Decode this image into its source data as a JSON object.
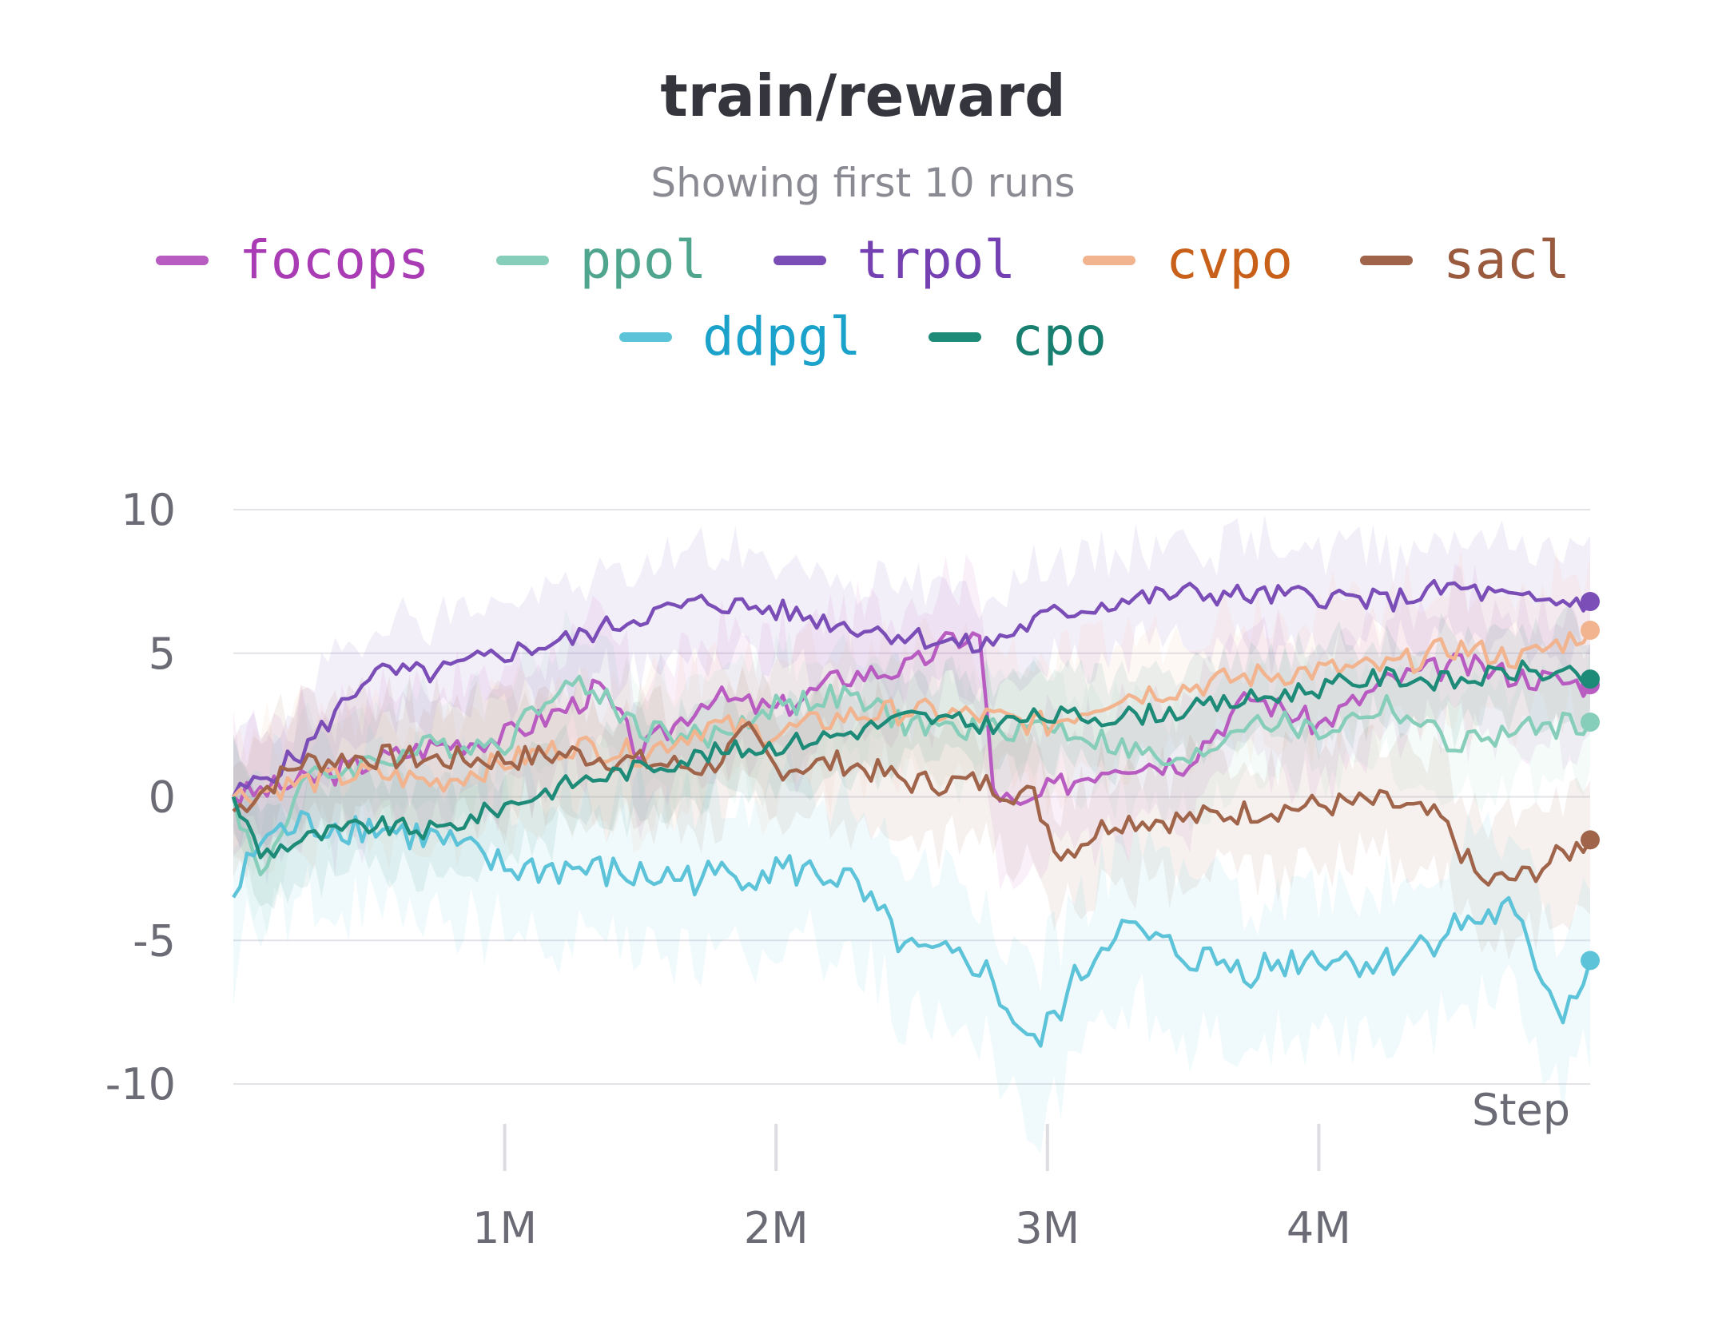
{
  "chart_data": {
    "type": "line",
    "title": "train/reward",
    "subtitle": "Showing first 10 runs",
    "xlabel": "Step",
    "ylabel": "",
    "xlim": [
      0,
      5000000
    ],
    "ylim": [
      -10,
      10
    ],
    "xticks": [
      1000000,
      2000000,
      3000000,
      4000000
    ],
    "xtick_labels": [
      "1M",
      "2M",
      "3M",
      "4M"
    ],
    "yticks": [
      10,
      5,
      0,
      -5,
      -10
    ],
    "ytick_labels": [
      "10",
      "5",
      "0",
      "-5",
      "-10"
    ],
    "grid": "horizontal",
    "legend_position": "top",
    "series": [
      {
        "name": "focops",
        "color": "#b85cc1",
        "text_color": "#a93cb5",
        "x": [
          0,
          250000,
          500000,
          750000,
          1000000,
          1250000,
          1350000,
          1500000,
          1750000,
          2000000,
          2250000,
          2500000,
          2650000,
          2750000,
          2800000,
          2900000,
          3000000,
          3250000,
          3500000,
          3750000,
          4000000,
          4250000,
          4500000,
          4750000,
          5000000
        ],
        "values": [
          0,
          0.5,
          1.2,
          1.8,
          2.1,
          3.2,
          3.8,
          1.5,
          3.5,
          3.0,
          4.2,
          4.5,
          5.5,
          5.6,
          0.3,
          -0.5,
          0.2,
          1.2,
          1.2,
          3.5,
          2.5,
          4.0,
          4.6,
          4.2,
          3.9
        ],
        "end_value": 3.9
      },
      {
        "name": "ppol",
        "color": "#86ceb9",
        "text_color": "#4fa58e",
        "x": [
          0,
          100000,
          250000,
          500000,
          750000,
          1000000,
          1200000,
          1350000,
          1500000,
          1750000,
          2000000,
          2250000,
          2500000,
          2750000,
          3000000,
          3250000,
          3500000,
          3750000,
          4000000,
          4250000,
          4500000,
          4750000,
          5000000
        ],
        "values": [
          0,
          -2.8,
          0.5,
          1.2,
          1.8,
          1.9,
          4.0,
          3.6,
          2.4,
          2.0,
          3.2,
          3.5,
          2.5,
          2.3,
          2.5,
          1.8,
          1.0,
          2.8,
          2.2,
          3.2,
          1.8,
          2.3,
          2.6
        ],
        "end_value": 2.6
      },
      {
        "name": "trpol",
        "color": "#7a4db7",
        "text_color": "#7440b2",
        "x": [
          0,
          250000,
          500000,
          750000,
          1000000,
          1250000,
          1500000,
          1750000,
          2000000,
          2250000,
          2500000,
          2750000,
          3000000,
          3250000,
          3500000,
          3750000,
          4000000,
          4250000,
          4500000,
          4750000,
          5000000
        ],
        "values": [
          0,
          1.5,
          4.3,
          4.3,
          5.0,
          5.5,
          6.3,
          6.8,
          6.5,
          6.0,
          5.6,
          5.2,
          6.3,
          6.8,
          7.1,
          7.0,
          7.0,
          6.8,
          7.3,
          6.8,
          6.8
        ],
        "end_value": 6.8
      },
      {
        "name": "cvpo",
        "color": "#f2b48e",
        "text_color": "#c8601a",
        "x": [
          0,
          250000,
          500000,
          750000,
          1000000,
          1250000,
          1500000,
          1750000,
          2000000,
          2250000,
          2500000,
          2750000,
          3000000,
          3250000,
          3500000,
          3750000,
          4000000,
          4250000,
          4500000,
          4750000,
          5000000
        ],
        "values": [
          0,
          0.5,
          0.8,
          0.5,
          1.2,
          1.8,
          1.5,
          2.5,
          2.2,
          2.8,
          3.0,
          2.8,
          2.5,
          3.5,
          3.8,
          4.2,
          4.4,
          4.5,
          5.2,
          4.8,
          5.8
        ],
        "end_value": 5.8
      },
      {
        "name": "sacl",
        "color": "#a0644a",
        "text_color": "#9a5a3e",
        "x": [
          0,
          250000,
          500000,
          750000,
          1000000,
          1250000,
          1500000,
          1750000,
          1900000,
          2000000,
          2250000,
          2500000,
          2750000,
          2950000,
          3050000,
          3250000,
          3500000,
          3750000,
          4000000,
          4250000,
          4450000,
          4600000,
          4750000,
          5000000
        ],
        "values": [
          -0.5,
          1.2,
          1.4,
          1.3,
          1.3,
          1.5,
          1.2,
          1.0,
          2.2,
          1.0,
          1.2,
          0.5,
          0.5,
          0.0,
          -2.0,
          -0.8,
          -0.8,
          -0.5,
          -0.3,
          -0.2,
          -0.8,
          -3.0,
          -2.8,
          -1.5
        ],
        "end_value": -1.5
      },
      {
        "name": "ddpgl",
        "color": "#5cc3d9",
        "text_color": "#1aa2ca",
        "x": [
          0,
          100000,
          250000,
          500000,
          750000,
          1000000,
          1250000,
          1500000,
          1750000,
          2000000,
          2250000,
          2500000,
          2750000,
          2950000,
          3100000,
          3250000,
          3500000,
          3750000,
          4000000,
          4250000,
          4500000,
          4700000,
          4900000,
          5000000
        ],
        "values": [
          -3.5,
          -1.5,
          -1.0,
          -1.0,
          -1.5,
          -2.5,
          -2.5,
          -2.8,
          -2.8,
          -2.5,
          -2.8,
          -5.5,
          -5.8,
          -8.8,
          -6.5,
          -4.5,
          -5.5,
          -6.0,
          -5.5,
          -5.8,
          -4.5,
          -4.0,
          -7.5,
          -5.7
        ],
        "end_value": -5.7
      },
      {
        "name": "cpo",
        "color": "#1e8a78",
        "text_color": "#188070",
        "x": [
          0,
          100000,
          250000,
          500000,
          750000,
          1000000,
          1250000,
          1500000,
          1750000,
          2000000,
          2250000,
          2500000,
          2750000,
          3000000,
          3250000,
          3500000,
          3750000,
          4000000,
          4250000,
          4500000,
          4750000,
          5000000
        ],
        "values": [
          0,
          -2.0,
          -1.5,
          -1.0,
          -1.2,
          -0.3,
          0.5,
          1.0,
          1.5,
          1.8,
          2.2,
          2.8,
          2.5,
          2.8,
          2.8,
          3.0,
          3.4,
          3.8,
          4.2,
          4.0,
          4.4,
          4.1
        ],
        "end_value": 4.1
      }
    ]
  }
}
